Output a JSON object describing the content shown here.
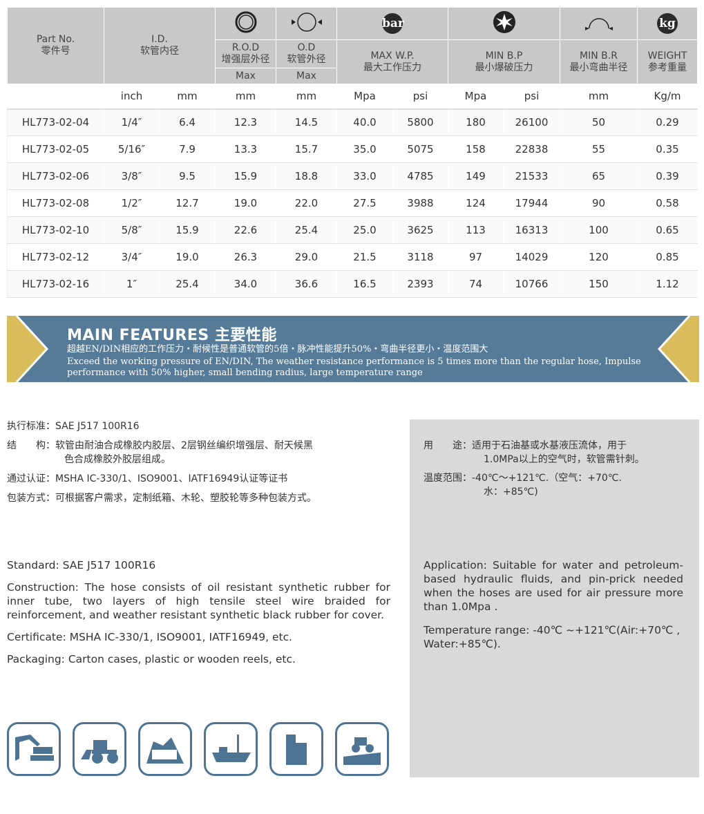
{
  "table": {
    "headers": {
      "part_no": "Part No.",
      "part_no_zh": "零件号",
      "id": "I.D.",
      "id_zh": "软管内径",
      "rod": "R.O.D",
      "rod_zh": "增强层外径",
      "od": "O.D",
      "od_zh": "软管外径",
      "max": "Max",
      "wp": "MAX W.P.",
      "wp_zh": "最大工作压力",
      "bp": "MIN B.P",
      "bp_zh": "最小爆破压力",
      "br": "MIN B.R",
      "br_zh": "最小弯曲半径",
      "weight": "WEIGHT",
      "weight_zh": "参考重量",
      "bar_icon": "bar",
      "kg_icon": "kg"
    },
    "units": [
      "inch",
      "mm",
      "mm",
      "mm",
      "Mpa",
      "psi",
      "Mpa",
      "psi",
      "mm",
      "Kg/m"
    ],
    "rows": [
      [
        "HL773-02-04",
        "1/4″",
        "6.4",
        "12.3",
        "14.5",
        "40.0",
        "5800",
        "180",
        "26100",
        "50",
        "0.29"
      ],
      [
        "HL773-02-05",
        "5/16″",
        "7.9",
        "13.3",
        "15.7",
        "35.0",
        "5075",
        "158",
        "22838",
        "55",
        "0.35"
      ],
      [
        "HL773-02-06",
        "3/8″",
        "9.5",
        "15.9",
        "18.8",
        "33.0",
        "4785",
        "149",
        "21533",
        "65",
        "0.39"
      ],
      [
        "HL773-02-08",
        "1/2″",
        "12.7",
        "19.0",
        "22.0",
        "27.5",
        "3988",
        "124",
        "17944",
        "90",
        "0.58"
      ],
      [
        "HL773-02-10",
        "5/8″",
        "15.9",
        "22.6",
        "25.4",
        "25.0",
        "3625",
        "113",
        "16313",
        "100",
        "0.65"
      ],
      [
        "HL773-02-12",
        "3/4″",
        "19.0",
        "26.3",
        "29.0",
        "21.5",
        "3118",
        "97",
        "14029",
        "120",
        "0.85"
      ],
      [
        "HL773-02-16",
        "1″",
        "25.4",
        "34.0",
        "36.6",
        "16.5",
        "2393",
        "74",
        "10766",
        "150",
        "1.12"
      ]
    ]
  },
  "banner": {
    "title": "MAIN FEATURES 主要性能",
    "zh": "超越EN/DIN相应的工作压力・耐候性是普通软管的5倍・脉冲性能提升50%・弯曲半径更小・温度范围大",
    "en": "Exceed the working pressure of EN/DIN, The weather resistance performance is 5 times more than the regular hose, Impulse performance with 50% higher, small bending radius, large temperature range"
  },
  "zh": {
    "standard": "执行标准：SAE J517 100R16",
    "construction": "结　　构：软管由耐油合成橡胶内胶层、2层钢丝编织增强层、耐天候黑",
    "construction2": "色合成橡胶外胶层组成。",
    "cert": "通过认证：MSHA IC-330/1、ISO9001、IATF16949认证等证书",
    "packaging": "包装方式：可根据客户需求，定制纸箱、木轮、塑胶轮等多种包装方式。",
    "application": "用　　途：适用于石油基或水基液压流体，用于",
    "application2": "1.0MPa以上的空气时，软管需针刺。",
    "temp": "温度范围：-40℃～+121℃.（空气：+70℃.",
    "temp2": "水：+85℃)"
  },
  "en": {
    "standard": "Standard: SAE J517 100R16",
    "construction": "Construction:  The hose consists of oil resistant synthetic rubber for inner tube, two layers of high tensile steel wire braided for reinforcement, and weather resistant synthetic black rubber for cover.",
    "cert": "Certificate: MSHA IC-330/1, ISO9001, IATF16949,  etc.",
    "packaging": "Packaging: Carton cases, plastic or wooden reels, etc.",
    "application": "Application: Suitable for water and petroleum-based hydraulic fluids, and pin-prick needed when the hoses are used for air pressure more than 1.0Mpa .",
    "temp": "Temperature range: -40℃ ~+121℃(Air:+70℃ , Water:+85℃)."
  },
  "icons": [
    "excavator-icon",
    "wheel-loader-icon",
    "mining-truck-icon",
    "ship-icon",
    "building-icon",
    "agriculture-tractor-icon"
  ],
  "colors": {
    "accent": "#557b99",
    "gold": "#d9bd5c",
    "header_gray": "#c8c8c8",
    "panel_gray": "#d9d9d9"
  }
}
